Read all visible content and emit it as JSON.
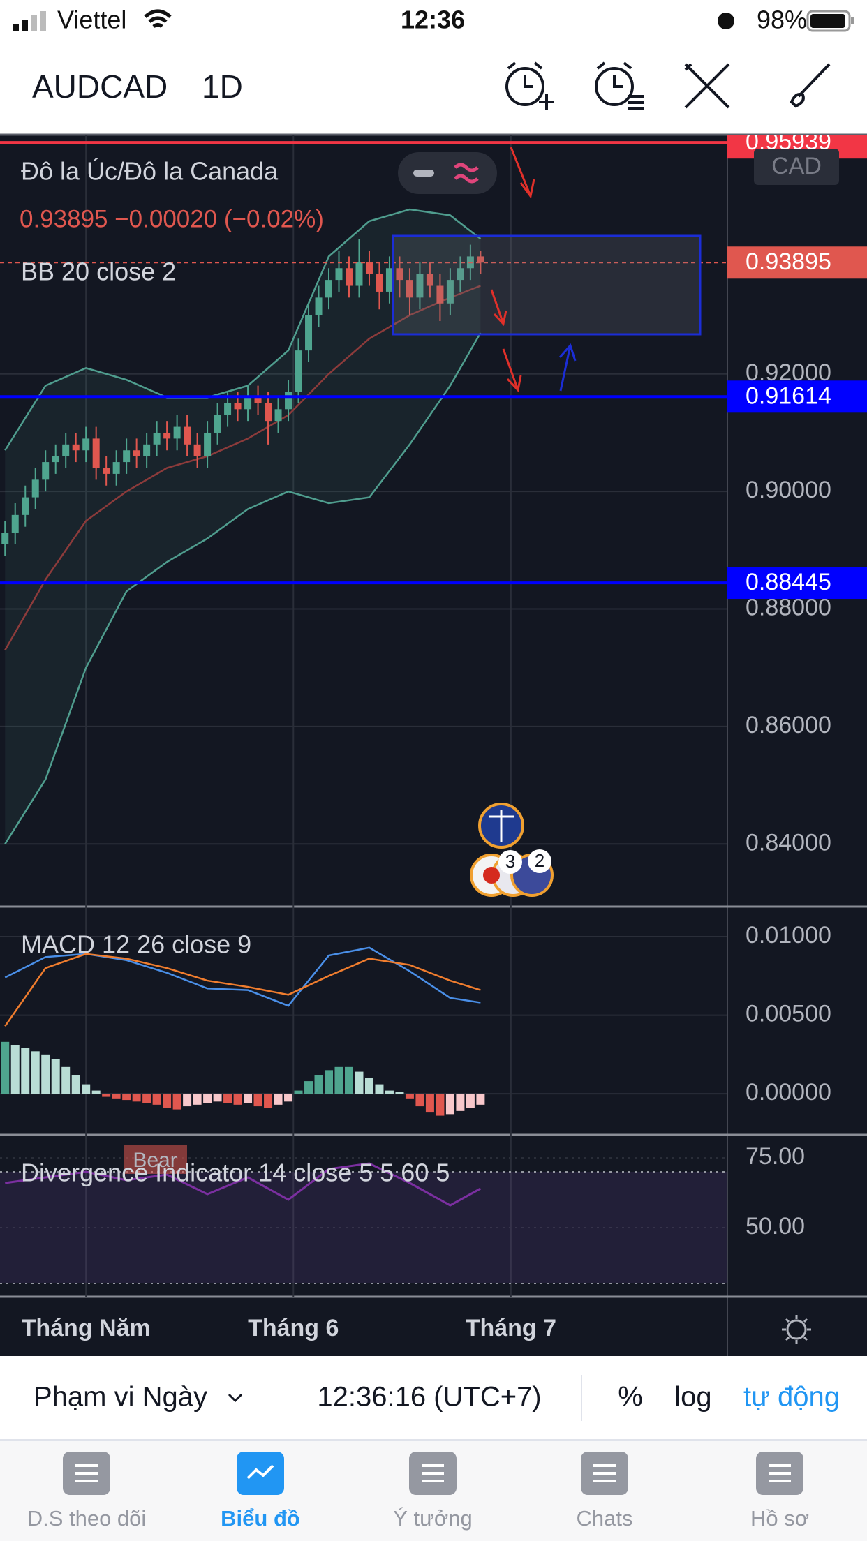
{
  "status_bar": {
    "carrier": "Viettel",
    "time": "12:36",
    "battery": "98%"
  },
  "header": {
    "symbol": "AUDCAD",
    "interval": "1D"
  },
  "chart_data": [
    {
      "type": "candlestick",
      "title": "Đô la Úc/Đô la Canada",
      "quote": "0.93895  −0.00020 (−0.02%)",
      "indicator": "BB 20 close 2",
      "currency": "CAD",
      "up_color": "#4fa58f",
      "down_color": "#e0574f",
      "candles": [
        [
          0.891,
          0.895,
          0.889,
          0.893
        ],
        [
          0.893,
          0.898,
          0.891,
          0.896
        ],
        [
          0.896,
          0.901,
          0.894,
          0.899
        ],
        [
          0.899,
          0.904,
          0.897,
          0.902
        ],
        [
          0.902,
          0.907,
          0.9,
          0.905
        ],
        [
          0.905,
          0.908,
          0.903,
          0.906
        ],
        [
          0.906,
          0.91,
          0.904,
          0.908
        ],
        [
          0.908,
          0.91,
          0.905,
          0.907
        ],
        [
          0.907,
          0.911,
          0.905,
          0.909
        ],
        [
          0.909,
          0.911,
          0.902,
          0.904
        ],
        [
          0.904,
          0.906,
          0.901,
          0.903
        ],
        [
          0.903,
          0.907,
          0.901,
          0.905
        ],
        [
          0.905,
          0.909,
          0.903,
          0.907
        ],
        [
          0.907,
          0.909,
          0.904,
          0.906
        ],
        [
          0.906,
          0.91,
          0.904,
          0.908
        ],
        [
          0.908,
          0.912,
          0.906,
          0.91
        ],
        [
          0.91,
          0.912,
          0.907,
          0.909
        ],
        [
          0.909,
          0.913,
          0.907,
          0.911
        ],
        [
          0.911,
          0.913,
          0.906,
          0.908
        ],
        [
          0.908,
          0.91,
          0.904,
          0.906
        ],
        [
          0.906,
          0.912,
          0.904,
          0.91
        ],
        [
          0.91,
          0.915,
          0.908,
          0.913
        ],
        [
          0.913,
          0.917,
          0.911,
          0.915
        ],
        [
          0.915,
          0.917,
          0.912,
          0.914
        ],
        [
          0.914,
          0.918,
          0.912,
          0.916
        ],
        [
          0.916,
          0.918,
          0.913,
          0.915
        ],
        [
          0.915,
          0.917,
          0.908,
          0.912
        ],
        [
          0.912,
          0.916,
          0.91,
          0.914
        ],
        [
          0.914,
          0.919,
          0.912,
          0.917
        ],
        [
          0.917,
          0.926,
          0.915,
          0.924
        ],
        [
          0.924,
          0.932,
          0.922,
          0.93
        ],
        [
          0.93,
          0.935,
          0.928,
          0.933
        ],
        [
          0.933,
          0.938,
          0.931,
          0.936
        ],
        [
          0.936,
          0.941,
          0.934,
          0.938
        ],
        [
          0.938,
          0.94,
          0.933,
          0.935
        ],
        [
          0.935,
          0.943,
          0.933,
          0.939
        ],
        [
          0.939,
          0.941,
          0.935,
          0.937
        ],
        [
          0.937,
          0.939,
          0.931,
          0.934
        ],
        [
          0.934,
          0.94,
          0.932,
          0.938
        ],
        [
          0.938,
          0.94,
          0.933,
          0.936
        ],
        [
          0.936,
          0.938,
          0.93,
          0.933
        ],
        [
          0.933,
          0.939,
          0.931,
          0.937
        ],
        [
          0.937,
          0.939,
          0.933,
          0.935
        ],
        [
          0.935,
          0.937,
          0.929,
          0.932
        ],
        [
          0.932,
          0.938,
          0.93,
          0.936
        ],
        [
          0.936,
          0.94,
          0.934,
          0.938
        ],
        [
          0.938,
          0.942,
          0.936,
          0.94
        ],
        [
          0.94,
          0.941,
          0.937,
          0.93895
        ]
      ],
      "bollinger": {
        "x": [
          0,
          4,
          8,
          12,
          16,
          20,
          24,
          28,
          32,
          36,
          40,
          44,
          47
        ],
        "upper": [
          0.907,
          0.918,
          0.921,
          0.919,
          0.916,
          0.916,
          0.918,
          0.924,
          0.94,
          0.946,
          0.948,
          0.947,
          0.943
        ],
        "middle": [
          0.873,
          0.885,
          0.895,
          0.9,
          0.904,
          0.906,
          0.909,
          0.913,
          0.92,
          0.926,
          0.93,
          0.933,
          0.935
        ],
        "lower": [
          0.84,
          0.851,
          0.87,
          0.883,
          0.888,
          0.892,
          0.897,
          0.9,
          0.898,
          0.899,
          0.908,
          0.918,
          0.927
        ],
        "band_color": "#4f9d8e",
        "middle_color": "#8c3b3b"
      },
      "price_lines": [
        {
          "value": 0.95939,
          "color": "#f23645",
          "style": "solid"
        },
        {
          "value": 0.93895,
          "color": "#e0574f",
          "style": "dashed"
        },
        {
          "value": 0.91614,
          "color": "#0000ff",
          "style": "solid"
        },
        {
          "value": 0.88445,
          "color": "#0000ff",
          "style": "solid"
        }
      ],
      "event_counts": [
        3,
        2
      ],
      "xlim": [
        -0.5,
        71.4
      ],
      "xticks": [
        {
          "value": 8,
          "label": "Tháng Năm"
        },
        {
          "value": 28.5,
          "label": "Tháng 6"
        },
        {
          "value": 50,
          "label": "Tháng 7"
        }
      ],
      "ylim": [
        0.8297,
        0.9606
      ],
      "yticks": [
        {
          "value": 0.84,
          "label": "0.84000"
        },
        {
          "value": 0.86,
          "label": "0.86000"
        },
        {
          "value": 0.88,
          "label": "0.88000"
        },
        {
          "value": 0.9,
          "label": "0.90000"
        },
        {
          "value": 0.92,
          "label": "0.92000"
        }
      ],
      "grid": true
    },
    {
      "type": "macd",
      "title": "MACD 12 26 close 9",
      "x": [
        0,
        4,
        8,
        12,
        16,
        20,
        24,
        28,
        32,
        36,
        40,
        44,
        47
      ],
      "lines": [
        {
          "color": "#4a8fe8",
          "values": [
            0.0074,
            0.0087,
            0.0089,
            0.0085,
            0.0077,
            0.0067,
            0.0066,
            0.0056,
            0.0088,
            0.0093,
            0.0078,
            0.0061,
            0.0058
          ]
        },
        {
          "color": "#f07d2e",
          "values": [
            0.0043,
            0.008,
            0.0089,
            0.0086,
            0.008,
            0.0072,
            0.0068,
            0.0063,
            0.0075,
            0.0086,
            0.0082,
            0.0072,
            0.0066
          ]
        }
      ],
      "histogram": {
        "colors": [
          "#4fa58f",
          "#b9ddd5",
          "#e0574f",
          "#f8c8cb"
        ],
        "values": [
          0.0033,
          0.0031,
          0.0029,
          0.0027,
          0.0025,
          0.0022,
          0.0017,
          0.0012,
          0.0006,
          0.0002,
          -0.0002,
          -0.0003,
          -0.0004,
          -0.0005,
          -0.0006,
          -0.0007,
          -0.0009,
          -0.001,
          -0.0008,
          -0.0007,
          -0.0006,
          -0.0005,
          -0.0006,
          -0.0007,
          -0.0006,
          -0.0008,
          -0.0009,
          -0.0007,
          -0.0005,
          0.0002,
          0.0008,
          0.0012,
          0.0015,
          0.0017,
          0.0017,
          0.0014,
          0.001,
          0.0006,
          0.0002,
          0.0001,
          -0.0003,
          -0.0008,
          -0.0012,
          -0.0014,
          -0.0013,
          -0.0011,
          -0.0009,
          -0.0007
        ]
      },
      "ylim": [
        -0.00244,
        0.01178
      ],
      "yticks": [
        {
          "value": 0.01,
          "label": "0.01000"
        },
        {
          "value": 0.005,
          "label": "0.00500"
        },
        {
          "value": 0,
          "label": "0.00000"
        }
      ]
    },
    {
      "type": "oscillator",
      "title": "Divergence Indicator 14 close 5 5 60 5",
      "label": "Bear",
      "x": [
        0,
        4,
        8,
        12,
        16,
        20,
        24,
        28,
        32,
        36,
        40,
        44,
        47
      ],
      "values": [
        66,
        68,
        70,
        67,
        69,
        62,
        68,
        60,
        71,
        73,
        66,
        58,
        64
      ],
      "color": "#7b2fa0",
      "bands": [
        30,
        70
      ],
      "ylim": [
        25.75,
        82.25
      ],
      "yticks": [
        {
          "value": 75,
          "label": "75.00"
        },
        {
          "value": 50,
          "label": "50.00"
        }
      ]
    }
  ],
  "toolbar": {
    "range": "Phạm vi Ngày",
    "clock": "12:36:16 (UTC+7)",
    "percent": "%",
    "log": "log",
    "auto": "tự động"
  },
  "tabs": [
    "D.S theo dõi",
    "Biểu đồ",
    "Ý tưởng",
    "Chats",
    "Hồ sơ"
  ],
  "active_tab": 1
}
